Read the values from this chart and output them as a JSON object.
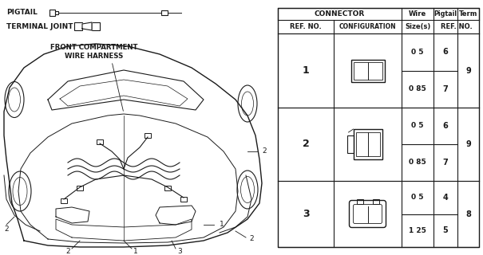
{
  "bg_color": "#ffffff",
  "text_color": "#1a1a1a",
  "line_color": "#1a1a1a",
  "table": {
    "rows": [
      {
        "ref": "1",
        "wire1": "0 5",
        "pig1": "6",
        "wire2": "0 85",
        "pig2": "7",
        "term": "9"
      },
      {
        "ref": "2",
        "wire1": "0 5",
        "pig1": "6",
        "wire2": "0 85",
        "pig2": "7",
        "term": "9"
      },
      {
        "ref": "3",
        "wire1": "0 5",
        "pig1": "4",
        "wire2": "1 25",
        "pig2": "5",
        "term": "8"
      }
    ]
  },
  "pigtail_label": "PIGTAIL",
  "terminal_label": "TERMINAL JOINT",
  "car_label": "FRONT COMPARTMENT\nWIRE HARNESS"
}
